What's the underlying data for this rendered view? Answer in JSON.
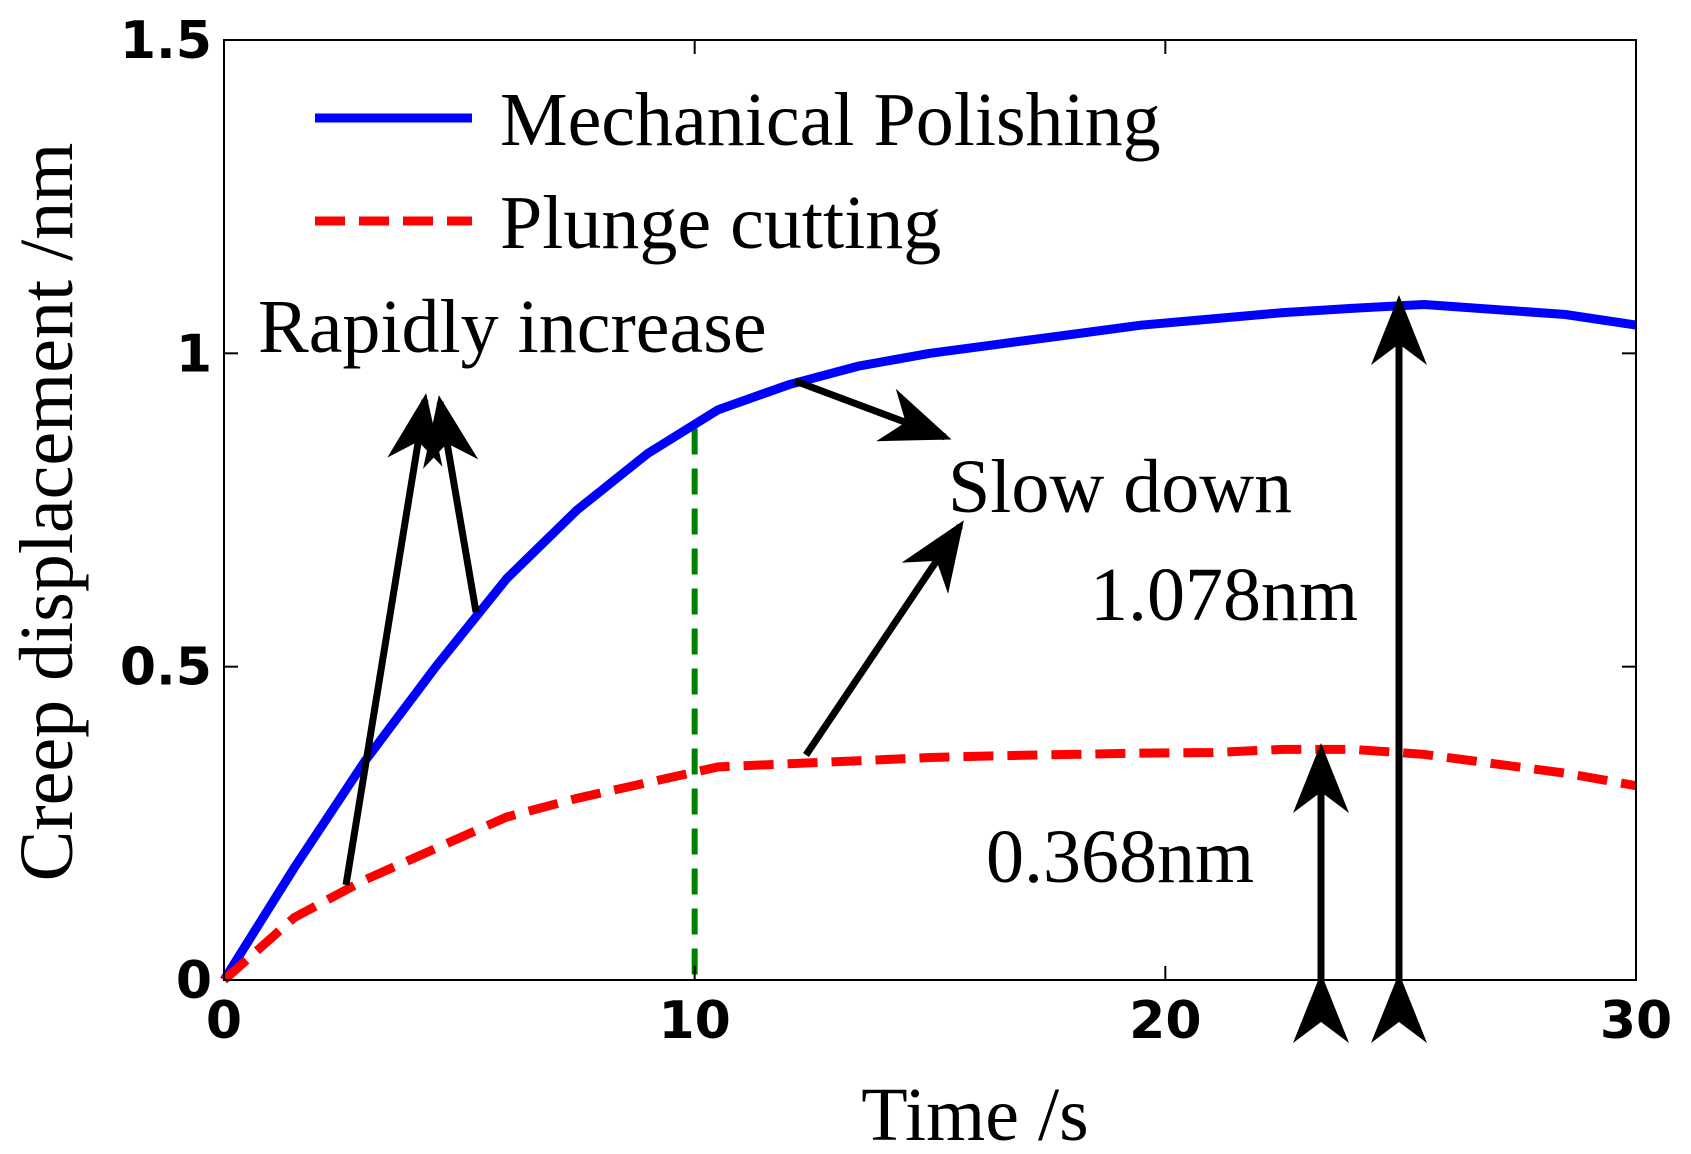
{
  "chart_data": {
    "type": "line",
    "title": "",
    "xlabel": "Time /s",
    "ylabel": "Creep displacement /nm",
    "xlim": [
      0,
      30
    ],
    "ylim": [
      0,
      1.5
    ],
    "xticks": [
      0,
      10,
      20,
      30
    ],
    "xtick_labels": [
      "0",
      "10",
      "20",
      "30"
    ],
    "yticks": [
      0,
      0.5,
      1,
      1.5
    ],
    "ytick_labels": [
      "0",
      "0.5",
      "1",
      "1.5"
    ],
    "grid": false,
    "legend_position": "top-left",
    "series": [
      {
        "name": "Mechanical Polishing",
        "style": "solid",
        "color": "#0000ff",
        "x": [
          0,
          1.5,
          3,
          4.5,
          6,
          7.5,
          9,
          10.5,
          12,
          13.5,
          15,
          16.5,
          18,
          19.5,
          21,
          22.5,
          24,
          25.5,
          27,
          28.5,
          30
        ],
        "y": [
          0,
          0.18,
          0.35,
          0.5,
          0.64,
          0.75,
          0.84,
          0.91,
          0.95,
          0.98,
          1.0,
          1.015,
          1.03,
          1.045,
          1.055,
          1.065,
          1.072,
          1.078,
          1.07,
          1.062,
          1.045
        ]
      },
      {
        "name": "Plunge cutting",
        "style": "dashed",
        "color": "#ff0000",
        "x": [
          0,
          1.5,
          3,
          4.5,
          6,
          7.5,
          9,
          10.5,
          12,
          13.5,
          15,
          16.5,
          18,
          19.5,
          21,
          22.5,
          24,
          25.5,
          27,
          28.5,
          30
        ],
        "y": [
          0,
          0.1,
          0.16,
          0.21,
          0.26,
          0.29,
          0.315,
          0.34,
          0.345,
          0.35,
          0.355,
          0.358,
          0.36,
          0.362,
          0.363,
          0.368,
          0.368,
          0.36,
          0.345,
          0.33,
          0.31
        ]
      }
    ],
    "reference_line": {
      "x": 10,
      "color": "#008000",
      "style": "dashed"
    },
    "annotations": [
      {
        "text": "Rapidly increase"
      },
      {
        "text": "Slow down"
      },
      {
        "text": "1.078nm",
        "value": 1.078
      },
      {
        "text": "0.368nm",
        "value": 0.368
      }
    ]
  }
}
